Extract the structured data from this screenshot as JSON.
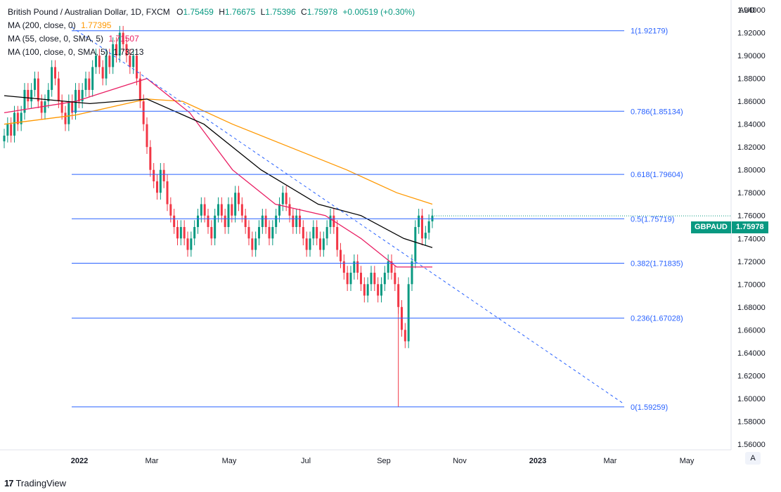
{
  "legend": {
    "instrument": "British Pound / Australian Dollar, 1D, FXCM",
    "open_label": "O",
    "open": "1.75459",
    "high_label": "H",
    "high": "1.76675",
    "low_label": "L",
    "low": "1.75396",
    "close_label": "C",
    "close": "1.75978",
    "change": "+0.00519 (+0.30%)",
    "ma200_label": "MA (200, close, 0)",
    "ma200_value": "1.77395",
    "ma55_label": "MA (55, close, 0, SMA, 5)",
    "ma55_value": "1.71507",
    "ma100_label": "MA (100, close, 0, SMA, 5)",
    "ma100_value": "1.73213"
  },
  "currency": "AUD",
  "price_tag": {
    "symbol": "GBPAUD",
    "value": "1.75978"
  },
  "scale_button": "A",
  "branding": {
    "logo": "17",
    "name": "TradingView"
  },
  "colors": {
    "up": "#089981",
    "down": "#f23645",
    "ma200": "#ff9800",
    "ma55": "#e91e63",
    "ma100": "#000000",
    "fib": "#2962ff",
    "trend": "#2962ff",
    "grid": "#f0f3fa",
    "text": "#131722"
  },
  "chart_data": {
    "type": "candlestick",
    "ylim": [
      1.555,
      1.945
    ],
    "y_ticks": [
      "1.94000",
      "1.92000",
      "1.90000",
      "1.88000",
      "1.86000",
      "1.84000",
      "1.82000",
      "1.80000",
      "1.78000",
      "1.76000",
      "1.74000",
      "1.72000",
      "1.70000",
      "1.68000",
      "1.66000",
      "1.64000",
      "1.62000",
      "1.60000",
      "1.58000",
      "1.56000"
    ],
    "x_ticks": [
      "2022",
      "Mar",
      "May",
      "Jul",
      "Sep",
      "Nov",
      "2023",
      "Mar",
      "May"
    ],
    "fib_levels": [
      {
        "label": "1(1.92179)",
        "value": 1.92179
      },
      {
        "label": "0.786(1.85134)",
        "value": 1.85134
      },
      {
        "label": "0.618(1.79604)",
        "value": 1.79604
      },
      {
        "label": "0.5(1.75719)",
        "value": 1.75719
      },
      {
        "label": "0.382(1.71835)",
        "value": 1.71835
      },
      {
        "label": "0.236(1.67028)",
        "value": 1.67028
      },
      {
        "label": "0(1.59259)",
        "value": 1.59259
      }
    ],
    "trendline": [
      [
        1.925,
        0
      ],
      [
        1.595,
        1
      ]
    ],
    "candles": [
      1.83,
      1.84,
      1.83,
      1.85,
      1.84,
      1.85,
      1.87,
      1.86,
      1.87,
      1.88,
      1.86,
      1.85,
      1.86,
      1.87,
      1.89,
      1.88,
      1.86,
      1.85,
      1.84,
      1.86,
      1.85,
      1.87,
      1.86,
      1.87,
      1.88,
      1.87,
      1.89,
      1.9,
      1.89,
      1.88,
      1.9,
      1.89,
      1.91,
      1.9,
      1.92,
      1.91,
      1.9,
      1.89,
      1.9,
      1.88,
      1.86,
      1.84,
      1.82,
      1.8,
      1.79,
      1.78,
      1.8,
      1.79,
      1.77,
      1.76,
      1.75,
      1.74,
      1.75,
      1.74,
      1.73,
      1.74,
      1.75,
      1.76,
      1.77,
      1.76,
      1.75,
      1.74,
      1.76,
      1.77,
      1.76,
      1.75,
      1.77,
      1.76,
      1.78,
      1.77,
      1.76,
      1.75,
      1.74,
      1.73,
      1.74,
      1.75,
      1.76,
      1.75,
      1.74,
      1.75,
      1.76,
      1.77,
      1.78,
      1.77,
      1.76,
      1.75,
      1.76,
      1.75,
      1.74,
      1.73,
      1.74,
      1.75,
      1.74,
      1.73,
      1.74,
      1.75,
      1.76,
      1.75,
      1.73,
      1.72,
      1.71,
      1.7,
      1.71,
      1.72,
      1.71,
      1.7,
      1.69,
      1.7,
      1.71,
      1.7,
      1.69,
      1.7,
      1.71,
      1.72,
      1.71,
      1.7,
      1.68,
      1.66,
      1.65,
      1.7,
      1.72,
      1.75,
      1.76,
      1.74,
      1.745,
      1.755,
      1.76
    ],
    "ma200": [
      [
        1.84,
        0
      ],
      [
        1.848,
        0.1
      ],
      [
        1.862,
        0.2
      ],
      [
        1.86,
        0.25
      ],
      [
        1.84,
        0.32
      ],
      [
        1.82,
        0.4
      ],
      [
        1.8,
        0.48
      ],
      [
        1.78,
        0.55
      ],
      [
        1.77,
        0.6
      ]
    ],
    "ma55": [
      [
        1.85,
        0
      ],
      [
        1.86,
        0.1
      ],
      [
        1.88,
        0.2
      ],
      [
        1.85,
        0.26
      ],
      [
        1.8,
        0.32
      ],
      [
        1.77,
        0.38
      ],
      [
        1.76,
        0.45
      ],
      [
        1.74,
        0.5
      ],
      [
        1.715,
        0.55
      ],
      [
        1.715,
        0.6
      ]
    ],
    "ma100": [
      [
        1.865,
        0
      ],
      [
        1.858,
        0.12
      ],
      [
        1.862,
        0.2
      ],
      [
        1.84,
        0.28
      ],
      [
        1.8,
        0.36
      ],
      [
        1.77,
        0.44
      ],
      [
        1.76,
        0.5
      ],
      [
        1.74,
        0.56
      ],
      [
        1.732,
        0.6
      ]
    ]
  }
}
